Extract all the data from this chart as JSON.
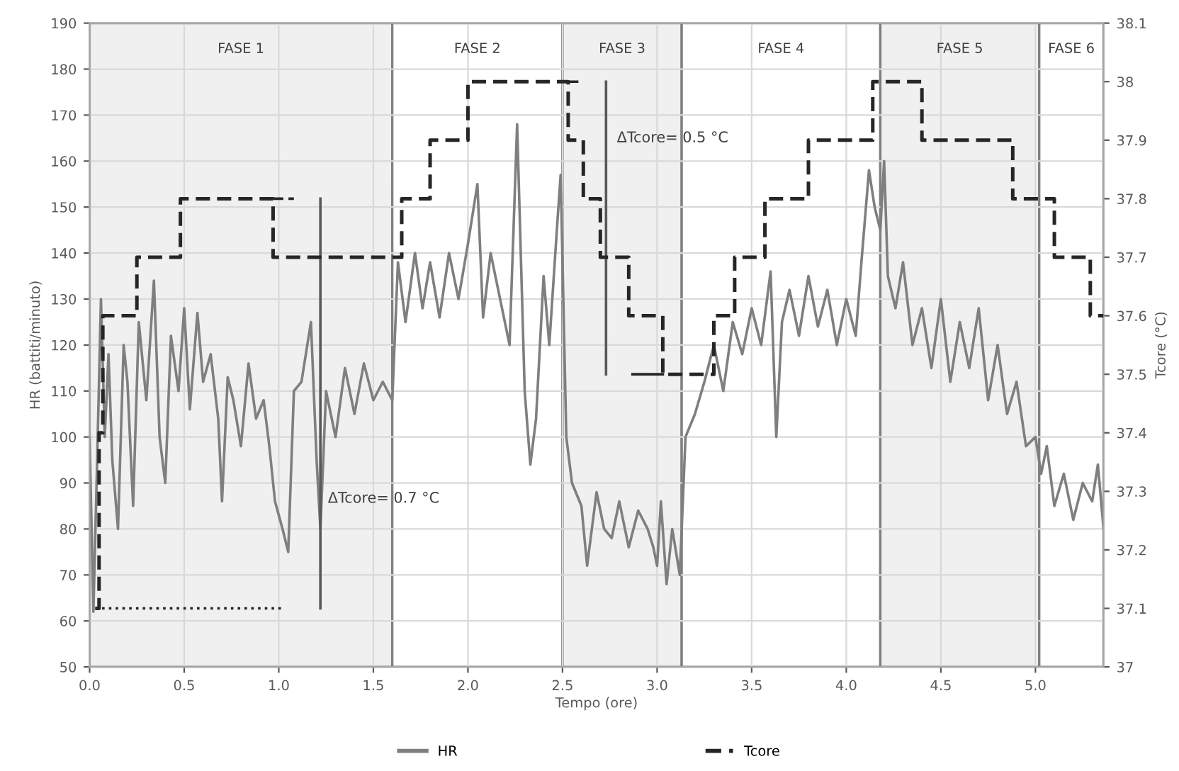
{
  "chart_data": {
    "type": "line",
    "xlabel": "Tempo (ore)",
    "ylabel": "HR (battiti/minuto)",
    "y2label": "Tcore (°C)",
    "xlim": [
      0,
      5.36
    ],
    "xticks": [
      {
        "value": 0,
        "label": "0.0"
      },
      0.5,
      {
        "value": 1,
        "label": "1.0"
      },
      1.5,
      {
        "value": 2,
        "label": "2.0"
      },
      2.5,
      {
        "value": 3,
        "label": "3.0"
      },
      3.5,
      {
        "value": 4,
        "label": "4.0"
      },
      4.5,
      {
        "value": 5,
        "label": "5.0"
      }
    ],
    "ylim": [
      50,
      190
    ],
    "yticks": [
      50,
      60,
      70,
      80,
      90,
      100,
      110,
      120,
      130,
      140,
      150,
      160,
      170,
      180,
      190
    ],
    "y2lim": [
      37,
      38.1
    ],
    "y2ticks": [
      37,
      37.1,
      37.2,
      37.3,
      37.4,
      37.5,
      37.6,
      37.7,
      37.8,
      37.9,
      38,
      38.1
    ],
    "grid": true,
    "legend": "bottom",
    "series": [
      {
        "name": "HR",
        "color": "#7f7f7f",
        "line_style": "solid",
        "x": [
          0.0,
          0.02,
          0.04,
          0.06,
          0.08,
          0.1,
          0.12,
          0.15,
          0.18,
          0.2,
          0.23,
          0.26,
          0.3,
          0.34,
          0.37,
          0.4,
          0.43,
          0.47,
          0.5,
          0.53,
          0.57,
          0.6,
          0.64,
          0.68,
          0.7,
          0.73,
          0.76,
          0.8,
          0.84,
          0.88,
          0.92,
          0.95,
          0.98,
          1.02,
          1.05,
          1.08,
          1.12,
          1.17,
          1.2,
          1.22,
          1.25,
          1.3,
          1.35,
          1.4,
          1.45,
          1.5,
          1.55,
          1.6,
          1.63,
          1.67,
          1.72,
          1.76,
          1.8,
          1.85,
          1.9,
          1.95,
          2.0,
          2.05,
          2.08,
          2.12,
          2.18,
          2.22,
          2.26,
          2.3,
          2.33,
          2.36,
          2.4,
          2.43,
          2.47,
          2.49,
          2.52,
          2.55,
          2.6,
          2.63,
          2.68,
          2.72,
          2.76,
          2.8,
          2.85,
          2.9,
          2.95,
          2.98,
          3.0,
          3.02,
          3.05,
          3.08,
          3.12,
          3.15,
          3.2,
          3.25,
          3.3,
          3.35,
          3.4,
          3.45,
          3.5,
          3.55,
          3.6,
          3.63,
          3.66,
          3.7,
          3.75,
          3.8,
          3.85,
          3.9,
          3.95,
          4.0,
          4.05,
          4.08,
          4.12,
          4.15,
          4.18,
          4.2,
          4.22,
          4.26,
          4.3,
          4.35,
          4.4,
          4.45,
          4.5,
          4.55,
          4.6,
          4.65,
          4.7,
          4.75,
          4.8,
          4.85,
          4.9,
          4.95,
          5.0,
          5.03,
          5.06,
          5.1,
          5.15,
          5.2,
          5.25,
          5.3,
          5.33,
          5.36
        ],
        "values": [
          100,
          62,
          95,
          130,
          100,
          118,
          95,
          80,
          120,
          112,
          85,
          125,
          108,
          134,
          100,
          90,
          122,
          110,
          128,
          106,
          127,
          112,
          118,
          104,
          86,
          113,
          108,
          98,
          116,
          104,
          108,
          98,
          86,
          80,
          75,
          110,
          112,
          125,
          95,
          80,
          110,
          100,
          115,
          105,
          116,
          108,
          112,
          108,
          138,
          125,
          140,
          128,
          138,
          126,
          140,
          130,
          142,
          155,
          126,
          140,
          128,
          120,
          168,
          110,
          94,
          104,
          135,
          120,
          145,
          157,
          100,
          90,
          85,
          72,
          88,
          80,
          78,
          86,
          76,
          84,
          80,
          76,
          72,
          86,
          68,
          80,
          70,
          100,
          105,
          112,
          120,
          110,
          125,
          118,
          128,
          120,
          136,
          100,
          125,
          132,
          122,
          135,
          124,
          132,
          120,
          130,
          122,
          138,
          158,
          150,
          145,
          160,
          135,
          128,
          138,
          120,
          128,
          115,
          130,
          112,
          125,
          115,
          128,
          108,
          120,
          105,
          112,
          98,
          100,
          92,
          98,
          85,
          92,
          82,
          90,
          86,
          94,
          80
        ]
      },
      {
        "name": "Tcore",
        "type": "step",
        "axis": "y2",
        "color": "#262626",
        "line_style": "dashed",
        "x": [
          0.03,
          0.05,
          0.07,
          0.25,
          0.48,
          0.97,
          1.65,
          1.8,
          2.0,
          2.53,
          2.61,
          2.7,
          2.85,
          3.03,
          3.3,
          3.41,
          3.57,
          3.8,
          4.14,
          4.4,
          4.88,
          5.1,
          5.29,
          5.36
        ],
        "values": [
          37.1,
          37.4,
          37.6,
          37.7,
          37.8,
          37.7,
          37.8,
          37.9,
          38.0,
          37.9,
          37.8,
          37.7,
          37.6,
          37.5,
          37.6,
          37.7,
          37.8,
          37.9,
          38.0,
          37.9,
          37.8,
          37.7,
          37.6,
          37.6
        ]
      },
      {
        "type": "line",
        "axis": "y2",
        "color": "#262626",
        "line_style": "dotted",
        "x": [
          0.03,
          1.03
        ],
        "values": [
          37.1,
          37.1
        ]
      },
      {
        "type": "line",
        "axis": "y2",
        "color": "#262626",
        "line_style": "dashed",
        "x": [
          0.97,
          1.08
        ],
        "values": [
          37.8,
          37.8
        ]
      },
      {
        "type": "line",
        "axis": "y2",
        "color": "#262626",
        "line_style": "dashed",
        "x": [
          2.53,
          2.6
        ],
        "values": [
          38.0,
          38.0
        ]
      },
      {
        "type": "line",
        "axis": "y2",
        "color": "#262626",
        "line_style": "solid",
        "x": [
          3.03,
          2.87
        ],
        "values": [
          37.5,
          37.5
        ]
      },
      {
        "type": "line",
        "axis": "y2",
        "color": "#595959",
        "line_style": "solid",
        "x": [
          1.22,
          1.22
        ],
        "values": [
          37.1,
          37.8
        ]
      },
      {
        "type": "line",
        "axis": "y2",
        "color": "#595959",
        "line_style": "solid",
        "x": [
          2.73,
          2.73
        ],
        "values": [
          37.5,
          38.0
        ]
      }
    ],
    "bands": [
      {
        "axis": "x",
        "from": 0,
        "to": 1.6,
        "label": "FASE 1",
        "color": "#f0f0f0"
      },
      {
        "axis": "x",
        "from": 1.6,
        "to": 2.5,
        "label": "FASE 2",
        "color": "#ffffff"
      },
      {
        "axis": "x",
        "from": 2.5,
        "to": 3.13,
        "label": "FASE 3",
        "color": "#f0f0f0"
      },
      {
        "axis": "x",
        "from": 3.13,
        "to": 4.18,
        "label": "FASE 4",
        "color": "#ffffff"
      },
      {
        "axis": "x",
        "from": 4.18,
        "to": 5.02,
        "label": "FASE 5",
        "color": "#f0f0f0"
      },
      {
        "axis": "x",
        "from": 5.02,
        "to": 5.36,
        "label": "FASE 6",
        "color": "#ffffff"
      }
    ],
    "annotations": [
      "ΔTcore= 0.7 °C",
      "ΔTcore= 0.5 °C"
    ]
  }
}
